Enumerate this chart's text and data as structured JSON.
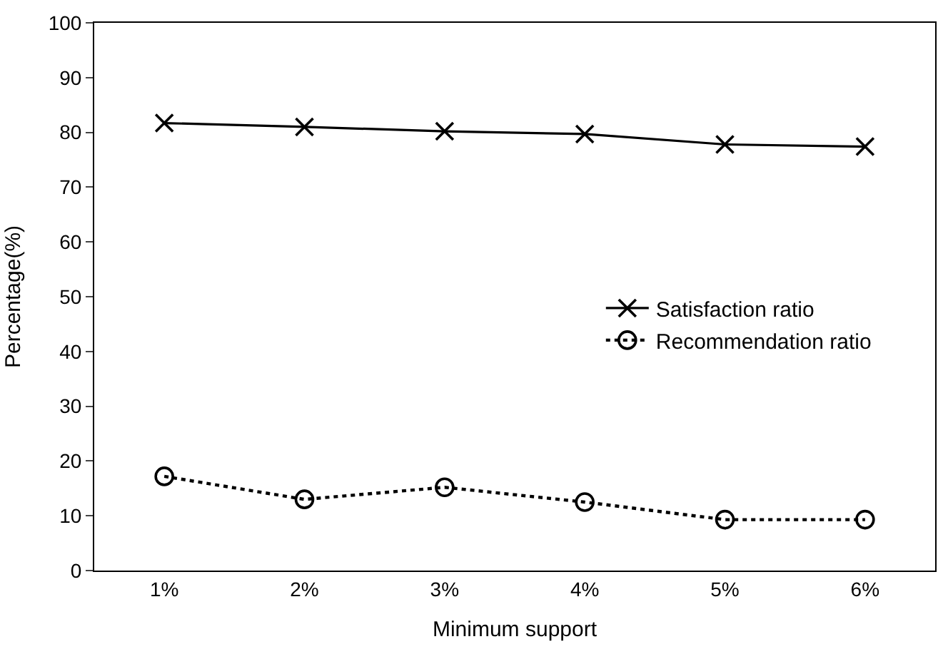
{
  "chart_data": {
    "type": "line",
    "xlabel": "Minimum support",
    "ylabel": "Percentage(%)",
    "categories": [
      "1%",
      "2%",
      "3%",
      "4%",
      "5%",
      "6%"
    ],
    "series": [
      {
        "name": "Satisfaction ratio",
        "color": "#000000",
        "marker": "cross",
        "line_style": "solid",
        "values": [
          81.7,
          81.0,
          80.2,
          79.7,
          77.8,
          77.4
        ]
      },
      {
        "name": "Recommendation ratio",
        "color": "#000000",
        "marker": "circle",
        "line_style": "dotted",
        "values": [
          17.2,
          13.0,
          15.2,
          12.5,
          9.3,
          9.3
        ]
      }
    ],
    "ylim": [
      0,
      100
    ],
    "yticks": [
      0,
      10,
      20,
      30,
      40,
      50,
      60,
      70,
      80,
      90,
      100
    ],
    "legend": "right"
  }
}
